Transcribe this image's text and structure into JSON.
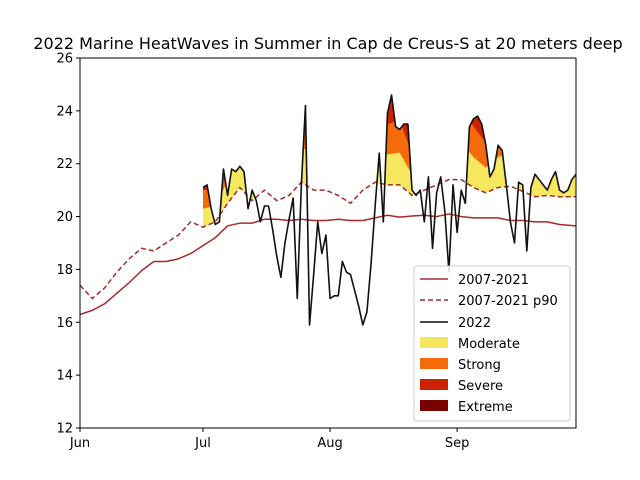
{
  "chart_data": {
    "type": "line",
    "title": "2022 Marine HeatWaves in Summer in Cap de Creus-S at 20 meters deep",
    "xlabel": "",
    "ylabel": "",
    "x_ticks": [
      "Jun",
      "Jul",
      "Aug",
      "Sep"
    ],
    "x_tick_days": [
      0,
      30,
      61,
      92
    ],
    "xlim": [
      0,
      121
    ],
    "ylim": [
      12,
      26
    ],
    "y_ticks": [
      "12",
      "14",
      "16",
      "18",
      "20",
      "22",
      "24",
      "26"
    ],
    "grid": false,
    "legend_position": "lower right",
    "colors": {
      "clim": "#a52a2a",
      "p90": "#a52a2a",
      "obs": "#111111",
      "moderate": "#f6e85e",
      "strong": "#f56a0a",
      "severe": "#cc2200",
      "extreme": "#7a0000"
    },
    "series": [
      {
        "name": "2007-2021",
        "key": "clim",
        "style": "solid",
        "x": [
          0,
          3,
          6,
          9,
          12,
          15,
          18,
          21,
          24,
          27,
          30,
          33,
          36,
          39,
          42,
          45,
          48,
          51,
          54,
          57,
          60,
          63,
          66,
          69,
          72,
          75,
          78,
          81,
          84,
          87,
          90,
          93,
          96,
          99,
          102,
          105,
          108,
          111,
          114,
          117,
          121
        ],
        "y": [
          16.3,
          16.45,
          16.7,
          17.1,
          17.5,
          17.95,
          18.3,
          18.3,
          18.4,
          18.6,
          18.9,
          19.2,
          19.65,
          19.75,
          19.75,
          19.9,
          19.9,
          19.85,
          19.9,
          19.85,
          19.85,
          19.9,
          19.85,
          19.85,
          19.95,
          20.05,
          19.98,
          20.02,
          20.05,
          20.0,
          20.1,
          20.0,
          19.95,
          19.95,
          19.95,
          19.85,
          19.85,
          19.8,
          19.8,
          19.7,
          19.65
        ]
      },
      {
        "name": "2007-2021 p90",
        "key": "p90",
        "style": "dashed",
        "x": [
          0,
          3,
          6,
          9,
          12,
          15,
          18,
          21,
          24,
          27,
          30,
          33,
          36,
          39,
          42,
          45,
          48,
          51,
          54,
          57,
          60,
          63,
          66,
          69,
          72,
          75,
          78,
          81,
          84,
          87,
          90,
          93,
          96,
          99,
          102,
          105,
          108,
          111,
          114,
          117,
          121
        ],
        "y": [
          17.4,
          16.9,
          17.3,
          17.9,
          18.4,
          18.8,
          18.7,
          19.0,
          19.3,
          19.8,
          19.6,
          19.8,
          20.5,
          21.1,
          20.6,
          21.0,
          20.6,
          20.8,
          21.3,
          21.0,
          21.0,
          20.8,
          20.5,
          21.0,
          21.3,
          21.2,
          21.2,
          20.8,
          21.0,
          21.2,
          21.4,
          21.4,
          21.1,
          20.9,
          21.1,
          21.15,
          20.95,
          20.75,
          20.8,
          20.75,
          20.75
        ]
      },
      {
        "name": "2022",
        "key": "obs",
        "style": "solid",
        "x": [
          30,
          31,
          32,
          33,
          34,
          35,
          36,
          37,
          38,
          39,
          40,
          41,
          42,
          43,
          44,
          45,
          46,
          47,
          48,
          49,
          50,
          51,
          52,
          53,
          54,
          55,
          56,
          57,
          58,
          59,
          60,
          61,
          62,
          63,
          64,
          65,
          66,
          67,
          68,
          69,
          70,
          71,
          72,
          73,
          74,
          75,
          76,
          77,
          78,
          79,
          80,
          81,
          82,
          83,
          84,
          85,
          86,
          87,
          88,
          89,
          90,
          91,
          92,
          93,
          94,
          95,
          96,
          97,
          98,
          99,
          100,
          101,
          102,
          103,
          104,
          105,
          106,
          107,
          108,
          109,
          110,
          111,
          112,
          113,
          114,
          115,
          116,
          117,
          118,
          119,
          120,
          121
        ],
        "y": [
          21.1,
          21.2,
          20.3,
          19.7,
          19.8,
          21.8,
          20.8,
          21.8,
          21.7,
          21.9,
          21.7,
          20.3,
          21.0,
          20.6,
          19.8,
          20.4,
          20.4,
          19.5,
          18.5,
          17.7,
          19.0,
          19.9,
          20.7,
          16.9,
          21.2,
          24.2,
          15.9,
          17.8,
          19.8,
          18.6,
          19.3,
          16.9,
          17.0,
          17.0,
          18.3,
          17.9,
          17.8,
          17.2,
          16.6,
          15.9,
          16.4,
          18.2,
          20.4,
          22.4,
          19.8,
          23.9,
          24.6,
          23.4,
          23.3,
          23.5,
          23.5,
          21.0,
          20.8,
          21.0,
          19.8,
          21.5,
          18.8,
          20.9,
          21.5,
          20.2,
          17.9,
          21.2,
          19.4,
          21.0,
          20.5,
          23.4,
          23.7,
          23.8,
          23.5,
          22.7,
          21.5,
          21.8,
          22.7,
          22.5,
          21.2,
          19.8,
          19.0,
          21.3,
          21.2,
          18.7,
          21.1,
          21.6,
          21.4,
          21.2,
          21.0,
          21.4,
          21.7,
          21.0,
          20.9,
          21.0,
          21.4,
          21.6
        ]
      }
    ],
    "categories_legend": [
      {
        "name": "Moderate",
        "key": "moderate"
      },
      {
        "name": "Strong",
        "key": "strong"
      },
      {
        "name": "Severe",
        "key": "severe"
      },
      {
        "name": "Extreme",
        "key": "extreme"
      }
    ]
  }
}
